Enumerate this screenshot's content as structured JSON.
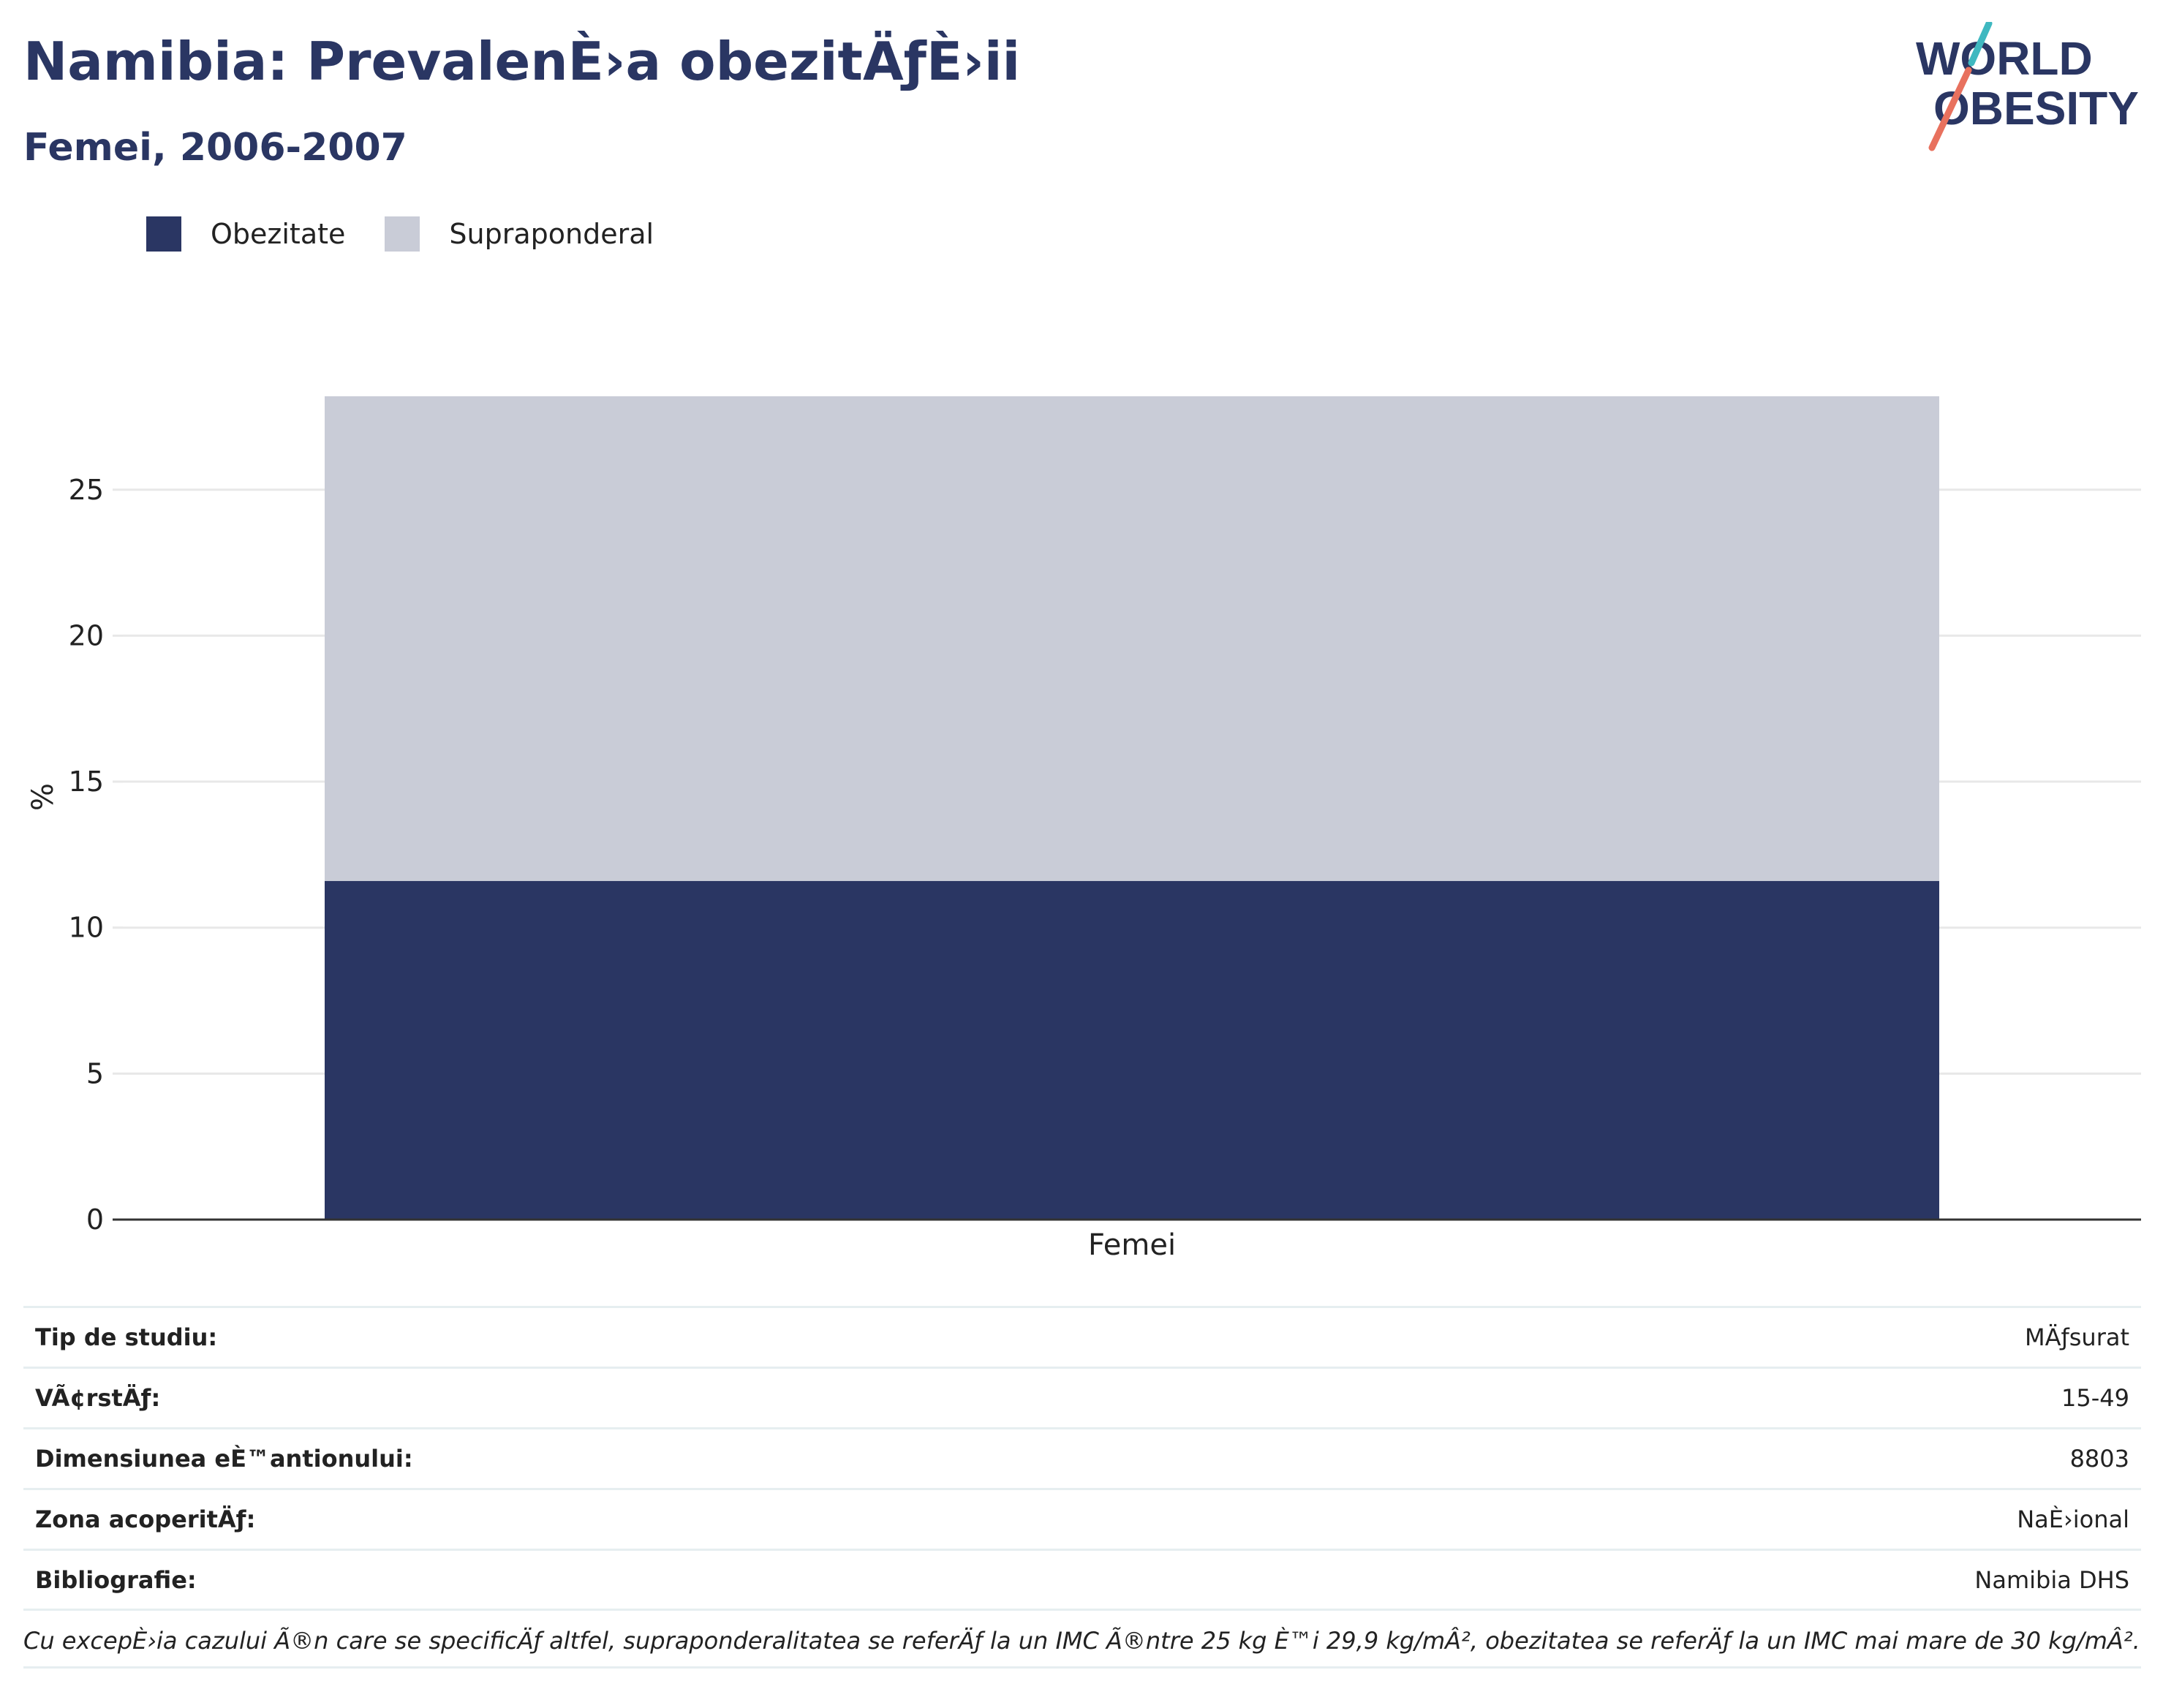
{
  "header": {
    "title": "Namibia: PrevalenÈ›a obezitÄƒÈ›ii",
    "subtitle": "Femei, 2006-2007"
  },
  "logo": {
    "line1": "WORLD",
    "line2": "OBESITY",
    "accent_teal": "#3fb8c0",
    "accent_coral": "#e8715e"
  },
  "colors": {
    "obesity": "#2a3663",
    "overweight": "#c9ccd7",
    "grid": "#e8e8e8",
    "axis": "#333333"
  },
  "legend": {
    "items": [
      {
        "label": "Obezitate",
        "color": "#2a3663"
      },
      {
        "label": "Supraponderal",
        "color": "#c9ccd7"
      }
    ]
  },
  "chart_data": {
    "type": "bar",
    "stacked": true,
    "categories": [
      "Femei"
    ],
    "series": [
      {
        "name": "Obezitate",
        "values": [
          11.6
        ]
      },
      {
        "name": "Supraponderal",
        "values": [
          16.6
        ]
      }
    ],
    "ylabel": "%",
    "xlabel": "",
    "ylim": [
      0,
      28.5
    ],
    "yticks": [
      0,
      5,
      10,
      15,
      20,
      25
    ],
    "grid": true,
    "legend_position": "top-left"
  },
  "info_rows": [
    {
      "key": "Tip de studiu:",
      "value": "MÄƒsurat"
    },
    {
      "key": "VÃ¢rstÄƒ:",
      "value": "15-49"
    },
    {
      "key": "Dimensiunea eÈ™antionului:",
      "value": "8803"
    },
    {
      "key": "Zona acoperitÄƒ:",
      "value": "NaÈ›ional"
    },
    {
      "key": "Bibliografie:",
      "value": "Namibia DHS"
    }
  ],
  "note": "Cu excepÈ›ia cazului Ã®n care se specificÄƒ altfel, supraponderalitatea se referÄƒ la un IMC Ã®ntre 25 kg È™i 29,9 kg/mÂ², obezitatea se referÄƒ la un IMC mai mare de 30 kg/mÂ²."
}
